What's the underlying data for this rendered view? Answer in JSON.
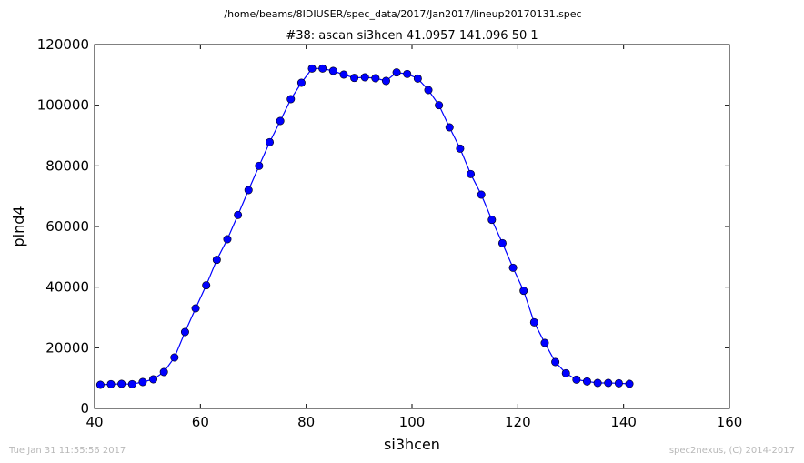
{
  "chart_data": {
    "type": "line",
    "suptitle": "/home/beams/8IDIUSER/spec_data/2017/Jan2017/lineup20170131.spec",
    "title": "#38: ascan  si3hcen 41.0957 141.096  50 1",
    "xlabel": "si3hcen",
    "ylabel": "pind4",
    "xlim": [
      40,
      160
    ],
    "ylim": [
      0,
      120000
    ],
    "xticks": [
      40,
      60,
      80,
      100,
      120,
      140,
      160
    ],
    "yticks": [
      0,
      20000,
      40000,
      60000,
      80000,
      100000,
      120000
    ],
    "grid": false,
    "marker": "circle",
    "line_color": "#0000ff",
    "marker_color": "#0000ff",
    "series": [
      {
        "x": [
          41.0957,
          43.0957,
          45.0957,
          47.0957,
          49.0957,
          51.0957,
          53.0957,
          55.0957,
          57.0957,
          59.0957,
          61.0957,
          63.0957,
          65.0957,
          67.0957,
          69.0957,
          71.0957,
          73.0957,
          75.0957,
          77.0957,
          79.0957,
          81.0957,
          83.0957,
          85.0957,
          87.0957,
          89.0957,
          91.0957,
          93.0957,
          95.0957,
          97.0957,
          99.0957,
          101.0957,
          103.0957,
          105.0957,
          107.0957,
          109.0957,
          111.0957,
          113.0957,
          115.0957,
          117.0957,
          119.0957,
          121.0957,
          123.0957,
          125.0957,
          127.0957,
          129.0957,
          131.0957,
          133.0957,
          135.0957,
          137.0957,
          139.0957,
          141.096
        ],
        "y": [
          7800,
          8000,
          8100,
          8000,
          8700,
          9600,
          12000,
          16800,
          25200,
          33000,
          40600,
          49000,
          55800,
          63800,
          72000,
          80000,
          87800,
          94800,
          102000,
          107400,
          112100,
          112100,
          111300,
          110100,
          109000,
          109200,
          108900,
          108000,
          110800,
          110300,
          108800,
          105000,
          100000,
          92700,
          85700,
          77300,
          70500,
          62200,
          54500,
          46400,
          38800,
          28400,
          21600,
          15300,
          11600,
          9500,
          8900,
          8400,
          8400,
          8300,
          8100
        ]
      }
    ]
  },
  "footer": {
    "left": "Tue Jan 31 11:55:56 2017",
    "right": "spec2nexus, (C) 2014-2017"
  },
  "colors": {
    "series": "#0000ff",
    "footer_text": "#b8b8b8",
    "axes": "#000000"
  }
}
